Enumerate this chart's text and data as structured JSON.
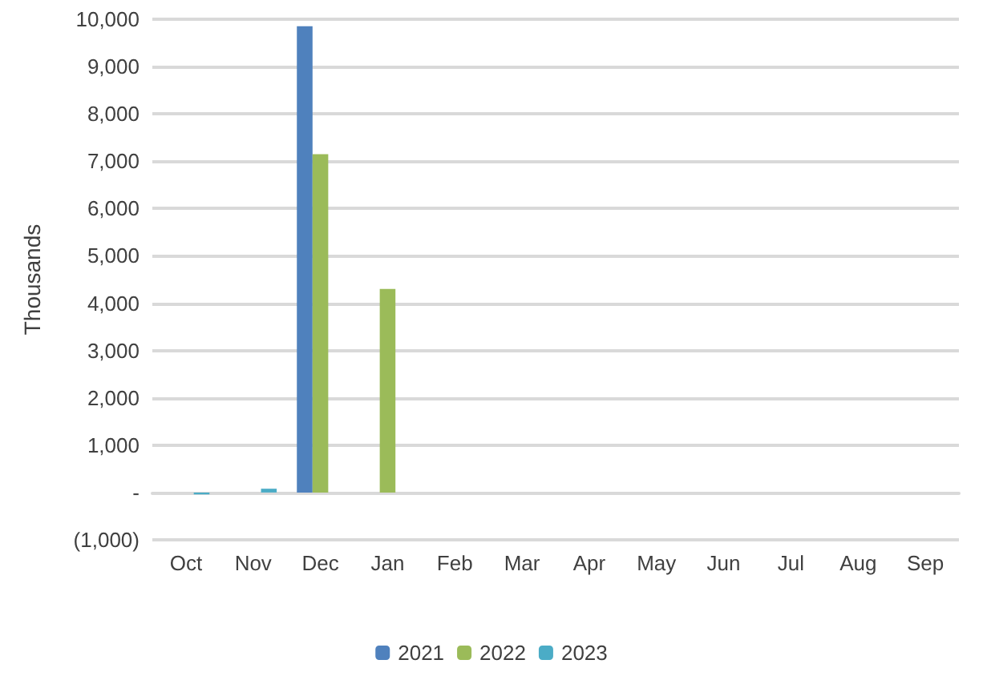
{
  "chart_data": {
    "type": "bar",
    "ylabel": "Thousands",
    "categories": [
      "Oct",
      "Nov",
      "Dec",
      "Jan",
      "Feb",
      "Mar",
      "Apr",
      "May",
      "Jun",
      "Jul",
      "Aug",
      "Sep"
    ],
    "series": [
      {
        "name": "2021",
        "color": "#4f81bd",
        "values": [
          0,
          0,
          9850,
          0,
          0,
          0,
          0,
          0,
          0,
          0,
          0,
          0
        ]
      },
      {
        "name": "2022",
        "color": "#9bbb59",
        "values": [
          0,
          0,
          7150,
          4300,
          0,
          0,
          0,
          0,
          0,
          0,
          0,
          0
        ]
      },
      {
        "name": "2023",
        "color": "#4bacc6",
        "values": [
          -40,
          80,
          0,
          0,
          0,
          0,
          0,
          0,
          0,
          0,
          0,
          0
        ]
      }
    ],
    "ylim": [
      -1000,
      10000
    ],
    "yticks": [
      {
        "value": -1000,
        "label": "(1,000)"
      },
      {
        "value": 0,
        "label": "-"
      },
      {
        "value": 1000,
        "label": "1,000"
      },
      {
        "value": 2000,
        "label": "2,000"
      },
      {
        "value": 3000,
        "label": "3,000"
      },
      {
        "value": 4000,
        "label": "4,000"
      },
      {
        "value": 5000,
        "label": "5,000"
      },
      {
        "value": 6000,
        "label": "6,000"
      },
      {
        "value": 7000,
        "label": "7,000"
      },
      {
        "value": 8000,
        "label": "8,000"
      },
      {
        "value": 9000,
        "label": "9,000"
      },
      {
        "value": 10000,
        "label": "10,000"
      }
    ],
    "grid": "y",
    "legend": "bottom"
  }
}
